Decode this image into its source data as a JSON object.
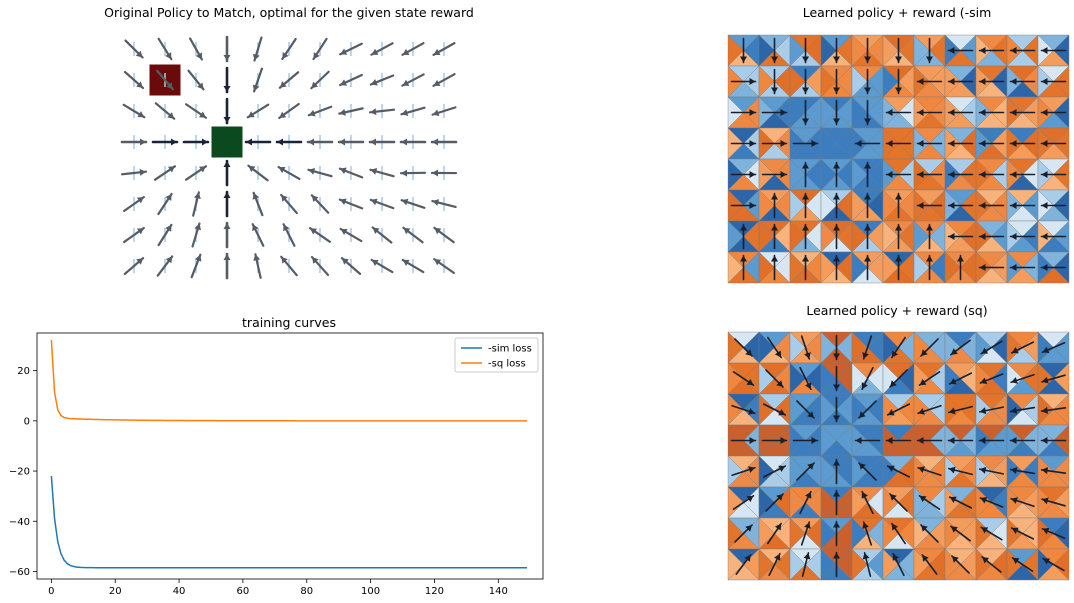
{
  "panels": {
    "original": {
      "title": "Original Policy to Match, optimal for the given state reward",
      "grid": {
        "cols": 11,
        "rows": 8
      },
      "reward_cells": [
        {
          "col": 1,
          "row": 1,
          "color": "#6b0a0a"
        },
        {
          "col": 3,
          "row": 3,
          "color": "#0a4a1e"
        }
      ]
    },
    "learned_sim": {
      "title": "Learned policy + reward (-sim",
      "grid": {
        "cols": 11,
        "rows": 8
      }
    },
    "learned_sq": {
      "title": "Learned policy + reward (sq)",
      "grid": {
        "cols": 11,
        "rows": 8
      }
    }
  },
  "chart_data": {
    "type": "line",
    "title": "training curves",
    "xlabel": "",
    "ylabel": "",
    "xlim": [
      -4.5,
      154
    ],
    "ylim": [
      -63,
      35
    ],
    "xticks": [
      0,
      20,
      40,
      60,
      80,
      100,
      120,
      140
    ],
    "yticks": [
      -60,
      -40,
      -20,
      0,
      20
    ],
    "legend_position": "top-right",
    "series": [
      {
        "name": "-sim loss",
        "color": "#1f77b4",
        "kind": "sim"
      },
      {
        "name": "-sq loss",
        "color": "#ff7f0e",
        "kind": "sq"
      }
    ]
  }
}
